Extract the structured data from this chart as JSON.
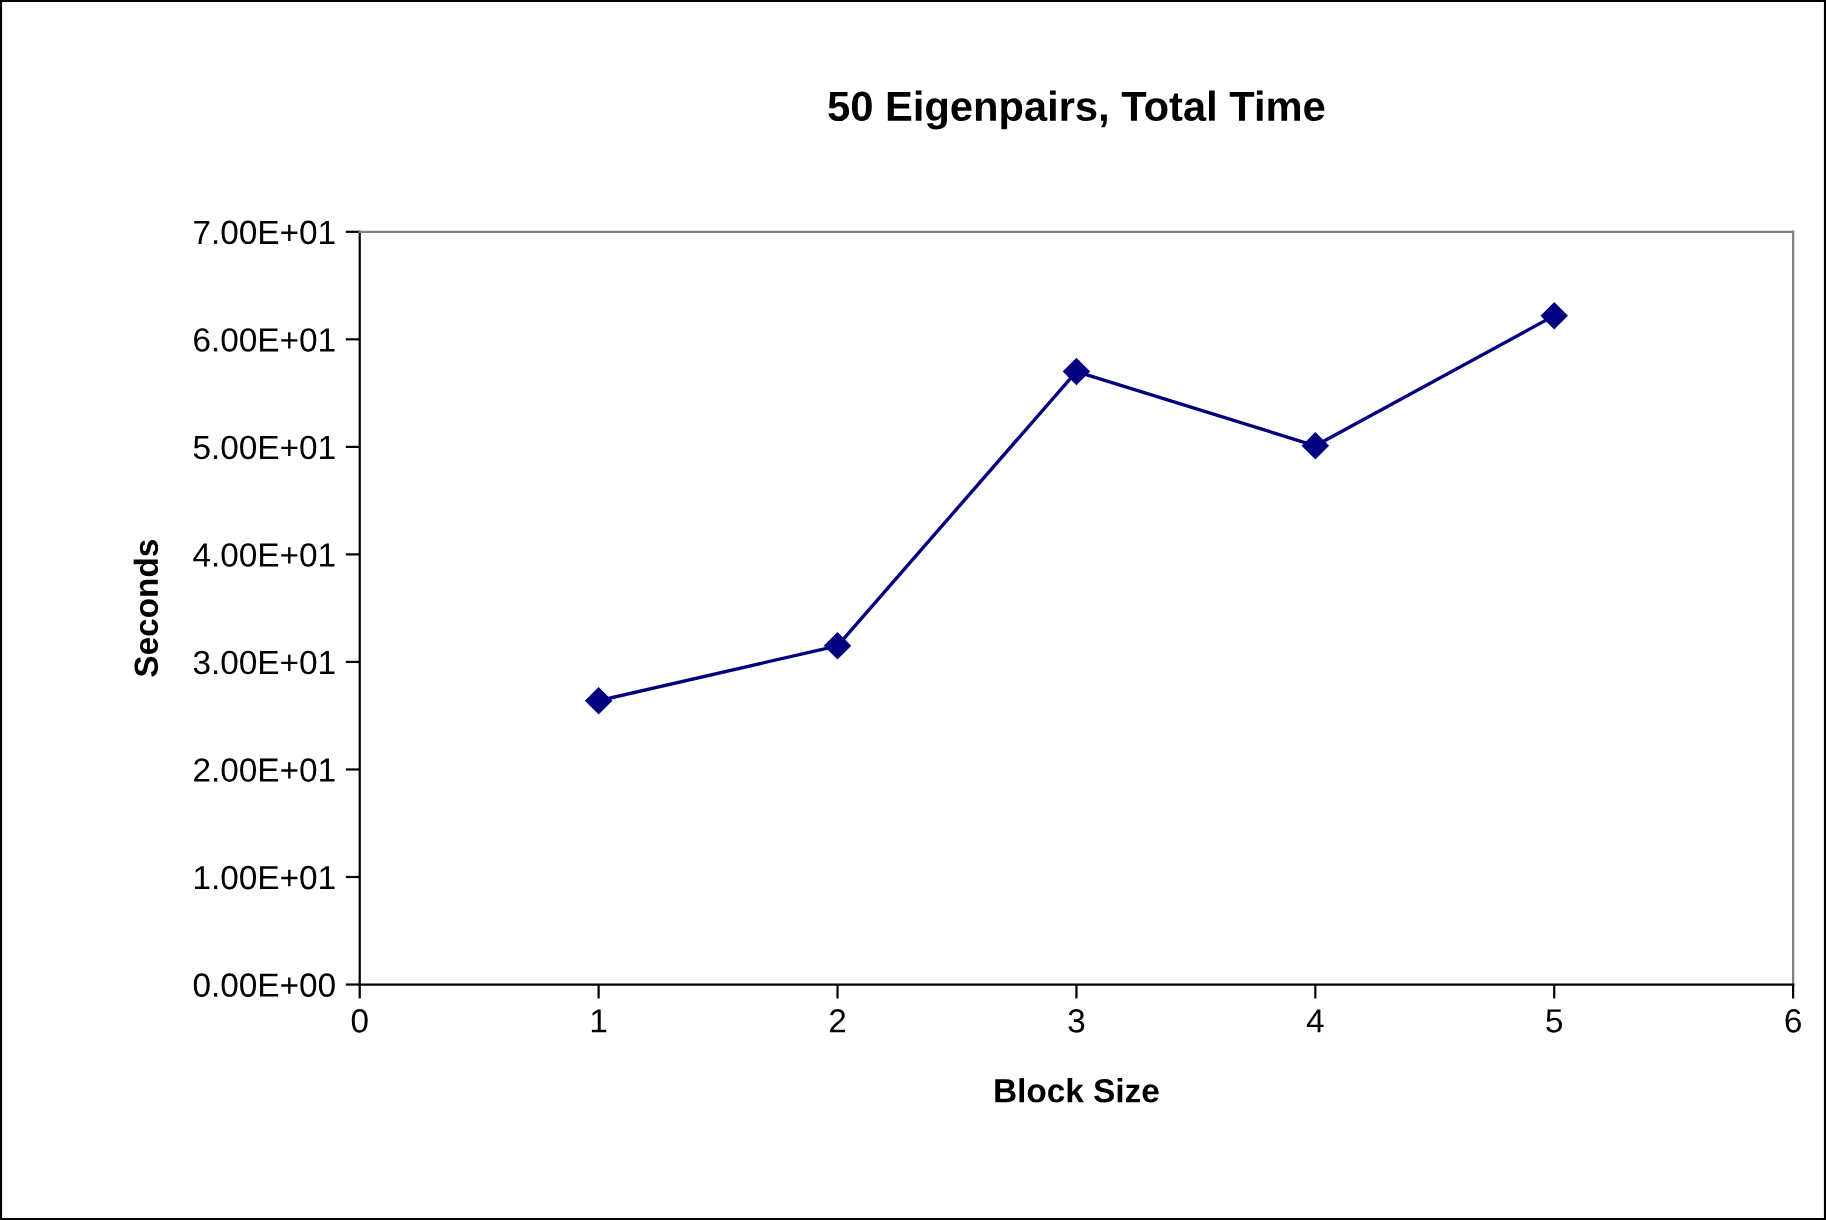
{
  "chart_data": {
    "type": "line",
    "title": "50 Eigenpairs, Total Time",
    "xlabel": "Block Size",
    "ylabel": "Seconds",
    "x": [
      1,
      2,
      3,
      4,
      5
    ],
    "series": [
      {
        "color": "#000080",
        "values": [
          26.4,
          31.5,
          57.0,
          50.1,
          62.2
        ]
      }
    ],
    "xlim": [
      0,
      6
    ],
    "xticks": [
      0,
      1,
      2,
      3,
      4,
      5,
      6
    ],
    "ylim": [
      0,
      70
    ],
    "yticks": [
      {
        "value": 0,
        "label": "0.00E+00"
      },
      {
        "value": 10,
        "label": "1.00E+01"
      },
      {
        "value": 20,
        "label": "2.00E+01"
      },
      {
        "value": 30,
        "label": "3.00E+01"
      },
      {
        "value": 40,
        "label": "4.00E+01"
      },
      {
        "value": 50,
        "label": "5.00E+01"
      },
      {
        "value": 60,
        "label": "6.00E+01"
      },
      {
        "value": 70,
        "label": "7.00E+01"
      }
    ],
    "grid": false,
    "legend": false,
    "marker": "diamond",
    "line_style": "solid"
  }
}
